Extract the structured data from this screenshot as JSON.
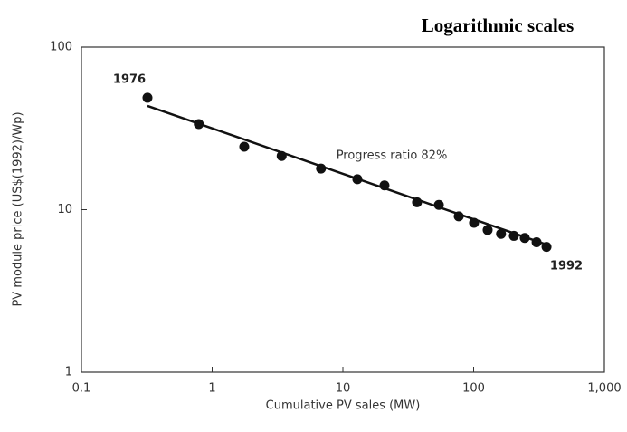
{
  "chart_data": {
    "type": "scatter",
    "title": "Logarithmic scales",
    "x_label": "Cumulative PV sales (MW)",
    "y_label": "PV module price (US$(1992)/Wp)",
    "annotations": [
      "1976",
      "1992",
      "Progress ratio 82%"
    ],
    "log_x": true,
    "log_y": true,
    "grid": false,
    "xlim": [
      0.1,
      1000
    ],
    "ylim": [
      1,
      100
    ],
    "xticks": [
      0.1,
      1,
      10,
      100,
      {
        "value": 1000,
        "label": "1,000"
      }
    ],
    "yticks": [
      1,
      10,
      100
    ],
    "series": [
      {
        "color": "#111111",
        "style": "markers",
        "x": [
          0.32,
          0.79,
          1.76,
          3.4,
          6.8,
          12.9,
          20.8,
          36.9,
          54.2,
          76.9,
          100.7,
          128,
          162,
          203,
          246,
          303,
          361
        ],
        "values": [
          48.8,
          33.6,
          24.4,
          21.4,
          17.9,
          15.4,
          14.1,
          11.1,
          10.7,
          9.1,
          8.3,
          7.5,
          7.1,
          6.9,
          6.7,
          6.3,
          5.9
        ]
      },
      {
        "color": "#111111",
        "style": "line",
        "x": [
          0.32,
          361
        ],
        "values": [
          43.5,
          6.1
        ]
      }
    ]
  }
}
